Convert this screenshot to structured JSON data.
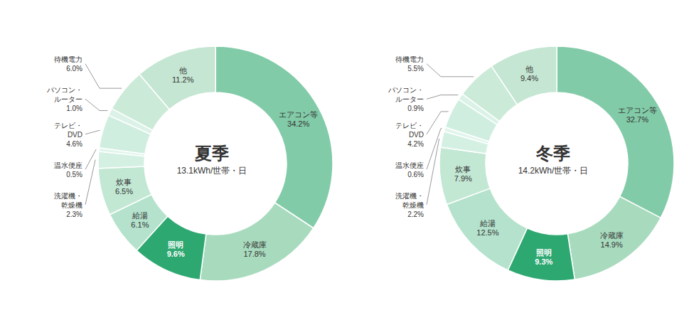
{
  "chart_data": [
    {
      "type": "pie",
      "title": "夏季",
      "subtitle": "13.1kWh/世帯・日",
      "categories": [
        "エアコン等",
        "冷蔵庫",
        "照明",
        "給湯",
        "炊事",
        "洗濯機・\n乾燥機",
        "温水便座",
        "テレビ・\nDVD",
        "パソコン・\nルーター",
        "待機電力",
        "他"
      ],
      "values": [
        34.2,
        17.8,
        9.6,
        6.1,
        6.5,
        2.3,
        0.5,
        4.6,
        1.0,
        6.0,
        11.2
      ],
      "value_labels": [
        "34.2%",
        "17.8%",
        "9.6%",
        "6.1%",
        "6.5%",
        "2.3%",
        "0.5%",
        "4.6%",
        "1.0%",
        "6.0%",
        "11.2%"
      ],
      "colors": [
        "#82cba8",
        "#a8dbbe",
        "#2ea871",
        "#b4e2cc",
        "#c2e8d4",
        "#d4f0e3",
        "#e0f5ec",
        "#d0eee0",
        "#daf2e8",
        "#ccead8",
        "#c4e6d2"
      ],
      "data_labels": true
    },
    {
      "type": "pie",
      "title": "冬季",
      "subtitle": "14.2kWh/世帯・日",
      "categories": [
        "エアコン等",
        "冷蔵庫",
        "照明",
        "給湯",
        "炊事",
        "洗濯機・\n乾燥機",
        "温水便座",
        "テレビ・\nDVD",
        "パソコン・\nルーター",
        "待機電力",
        "他"
      ],
      "values": [
        32.7,
        14.9,
        9.3,
        12.5,
        7.9,
        2.2,
        0.6,
        4.2,
        0.9,
        5.5,
        9.4
      ],
      "value_labels": [
        "32.7%",
        "14.9%",
        "9.3%",
        "12.5%",
        "7.9%",
        "2.2%",
        "0.6%",
        "4.2%",
        "0.9%",
        "5.5%",
        "9.4%"
      ],
      "colors": [
        "#82cba8",
        "#a8dbbe",
        "#2ea871",
        "#b4e2cc",
        "#c2e8d4",
        "#d4f0e3",
        "#e0f5ec",
        "#d0eee0",
        "#daf2e8",
        "#ccead8",
        "#c4e6d2"
      ],
      "data_labels": true
    }
  ]
}
